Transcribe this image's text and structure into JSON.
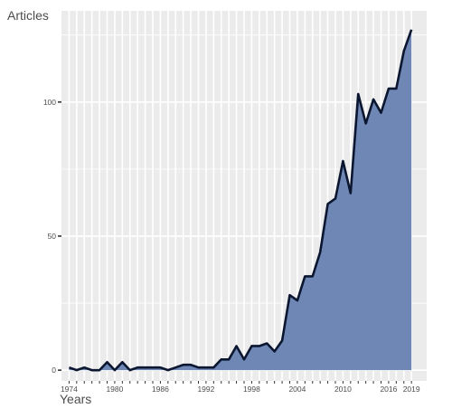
{
  "chart_data": {
    "type": "area",
    "title": "",
    "xlabel": "Years",
    "ylabel": "Articles",
    "x": [
      1974,
      1975,
      1976,
      1977,
      1978,
      1979,
      1980,
      1981,
      1982,
      1983,
      1984,
      1985,
      1986,
      1987,
      1988,
      1989,
      1990,
      1991,
      1992,
      1993,
      1994,
      1995,
      1996,
      1997,
      1998,
      1999,
      2000,
      2001,
      2002,
      2003,
      2004,
      2005,
      2006,
      2007,
      2008,
      2009,
      2010,
      2011,
      2012,
      2013,
      2014,
      2015,
      2016,
      2017,
      2018,
      2019
    ],
    "series": [
      {
        "values": [
          1,
          0,
          1,
          0,
          0,
          3,
          0,
          3,
          0,
          1,
          1,
          1,
          1,
          0,
          1,
          2,
          2,
          1,
          1,
          1,
          4,
          4,
          9,
          4,
          9,
          9,
          10,
          7,
          11,
          28,
          26,
          35,
          35,
          44,
          62,
          64,
          78,
          66,
          103,
          92,
          101,
          96,
          105,
          105,
          119,
          127
        ]
      }
    ],
    "xlim": [
      1973,
      2021
    ],
    "ylim": [
      -4,
      134
    ],
    "x_ticks": [
      1974,
      1980,
      1986,
      1992,
      1998,
      2004,
      2010,
      2016,
      2019
    ],
    "y_ticks": [
      0,
      50,
      100
    ],
    "x_tick_labels": [
      "1974",
      "1980",
      "1986",
      "1992",
      "1998",
      "2004",
      "2010",
      "2016",
      "2019"
    ],
    "y_tick_labels": [
      "0",
      "50",
      "100"
    ],
    "grid": true,
    "legend": "none",
    "fill_color": "#6f87b4",
    "line_color": "#0b1630",
    "panel_color": "#ebebeb",
    "grid_color": "#ffffff"
  }
}
